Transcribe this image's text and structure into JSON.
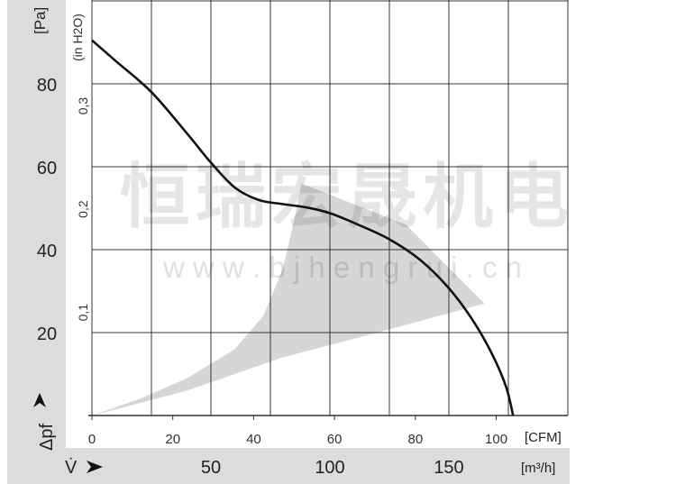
{
  "chart_data": {
    "type": "line",
    "ylabel": "[Pa]",
    "ylabel_secondary": "(in H2O)",
    "y_axis_symbol": "Δpf",
    "x_axis_symbol": "V̇",
    "xunit_primary": "[CFM]",
    "xunit_secondary": "[m³/h]",
    "xlim_m3h": [
      0,
      200
    ],
    "ylim_pa": [
      0,
      100
    ],
    "grid": true,
    "y_ticks_pa": [
      "20",
      "40",
      "60",
      "80"
    ],
    "y_ticks_inh2o": [
      "0,1",
      "0,2",
      "0,3"
    ],
    "x_ticks_cfm": [
      "0",
      "20",
      "40",
      "60",
      "80",
      "100"
    ],
    "x_ticks_m3h": [
      "50",
      "100",
      "150"
    ],
    "series": [
      {
        "x": [
          0,
          10,
          25,
          40,
          50,
          60,
          70,
          80,
          90,
          100,
          112,
          125,
          138,
          150,
          160,
          168,
          174,
          177
        ],
        "y": [
          90.5,
          85.5,
          78,
          68,
          61,
          55,
          52,
          51,
          50.2,
          48.8,
          46,
          42.5,
          37.5,
          30.7,
          23,
          15,
          7,
          0
        ]
      }
    ],
    "operating_region": {
      "x": [
        0,
        40,
        80,
        120,
        165,
        132,
        88,
        85,
        80,
        72,
        60,
        40,
        20,
        0
      ],
      "y": [
        0,
        6,
        14,
        20,
        27,
        46,
        56,
        47,
        35,
        24,
        16,
        9,
        4,
        0
      ]
    },
    "colors": {
      "curve": "#111111",
      "region": "#d6d6d6",
      "frame": "#dcdcdc",
      "grid": "#333333"
    }
  },
  "watermark": {
    "cn": "恒瑞宏晟机电",
    "url": "w w w . b j h e n g r u i . c n"
  }
}
